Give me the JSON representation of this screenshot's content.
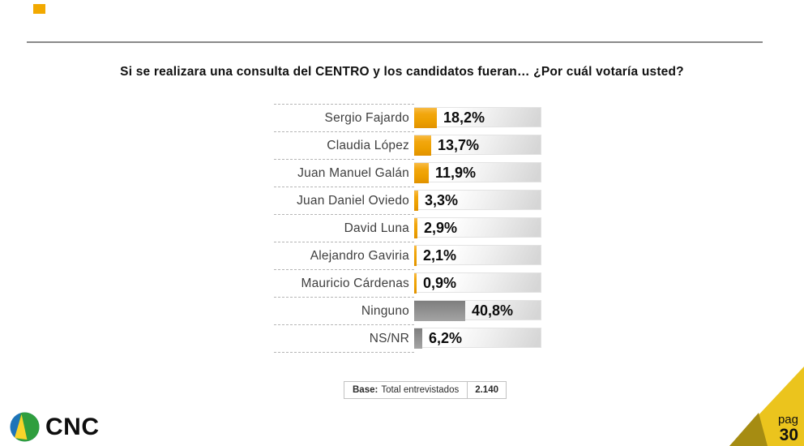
{
  "title": "Si se realizara una consulta del CENTRO y los candidatos fueran…  ¿Por cuál votaría usted?",
  "chart_data": {
    "type": "bar",
    "orientation": "horizontal",
    "value_unit": "%",
    "xlim": [
      0,
      100
    ],
    "grid": false,
    "legend": false,
    "categories": [
      "Sergio Fajardo",
      "Claudia López",
      "Juan Manuel Galán",
      "Juan Daniel Oviedo",
      "David Luna",
      "Alejandro Gaviria",
      "Mauricio Cárdenas",
      "Ninguno",
      "NS/NR"
    ],
    "values": [
      18.2,
      13.7,
      11.9,
      3.3,
      2.9,
      2.1,
      0.9,
      40.8,
      6.2
    ],
    "rows": [
      {
        "label": "Sergio Fajardo",
        "value": 18.2,
        "display": "18,2%",
        "color": "orange"
      },
      {
        "label": "Claudia López",
        "value": 13.7,
        "display": "13,7%",
        "color": "orange"
      },
      {
        "label": "Juan Manuel Galán",
        "value": 11.9,
        "display": "11,9%",
        "color": "orange"
      },
      {
        "label": "Juan Daniel Oviedo",
        "value": 3.3,
        "display": "3,3%",
        "color": "orange"
      },
      {
        "label": "David Luna",
        "value": 2.9,
        "display": "2,9%",
        "color": "orange"
      },
      {
        "label": "Alejandro Gaviria",
        "value": 2.1,
        "display": "2,1%",
        "color": "orange"
      },
      {
        "label": "Mauricio Cárdenas",
        "value": 0.9,
        "display": "0,9%",
        "color": "orange"
      },
      {
        "label": "Ninguno",
        "value": 40.8,
        "display": "40,8%",
        "color": "gray"
      },
      {
        "label": "NS/NR",
        "value": 6.2,
        "display": "6,2%",
        "color": "gray"
      }
    ]
  },
  "base_box": {
    "prefix": "Base:",
    "text": "Total entrevistados",
    "value": "2.140"
  },
  "footer": {
    "logo_text": "CNC",
    "page_label": "pag",
    "page_number": "30"
  },
  "icons": {
    "logo": "cnc-circle-logo-icon",
    "corner": "corner-triangle-decoration"
  },
  "colors": {
    "bar_orange": "#F0A500",
    "bar_gray": "#8C8C8C",
    "track_gray": "#D6D6D6",
    "accent_square": "#F2A900",
    "corner_gold": "#EBC41D",
    "corner_dark_gold": "#A68C12",
    "logo_blue": "#1E74B8",
    "logo_green": "#2F9E3E",
    "logo_yellow": "#F8D42A"
  }
}
